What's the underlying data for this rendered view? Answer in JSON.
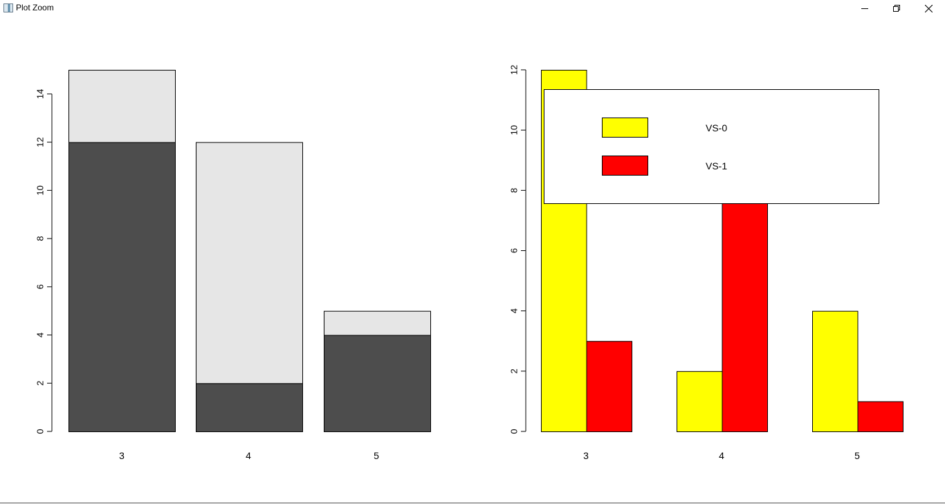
{
  "window": {
    "title": "Plot Zoom",
    "controls": [
      "minimize",
      "restore",
      "close"
    ]
  },
  "chart_data": [
    {
      "type": "bar",
      "stacked": true,
      "categories": [
        "3",
        "4",
        "5"
      ],
      "series": [
        {
          "values": [
            12,
            2,
            4
          ],
          "color": "#4d4d4d"
        },
        {
          "values": [
            3,
            10,
            1
          ],
          "color": "#e6e6e6"
        }
      ],
      "ylim": [
        0,
        15
      ],
      "yticks": [
        "0",
        "2",
        "4",
        "6",
        "8",
        "10",
        "12",
        "14"
      ],
      "title": "",
      "xlabel": "",
      "ylabel": "",
      "grid": false
    },
    {
      "type": "bar",
      "stacked": false,
      "categories": [
        "3",
        "4",
        "5"
      ],
      "series": [
        {
          "name": "VS-0",
          "values": [
            12,
            2,
            4
          ],
          "color": "#ffff00"
        },
        {
          "name": "VS-1",
          "values": [
            3,
            10,
            1
          ],
          "color": "#ff0000"
        }
      ],
      "ylim": [
        0,
        12
      ],
      "yticks": [
        "0",
        "2",
        "4",
        "6",
        "8",
        "10",
        "12"
      ],
      "legend": {
        "position": "top-right",
        "entries": [
          "VS-0",
          "VS-1"
        ]
      },
      "title": "",
      "xlabel": "",
      "ylabel": "",
      "grid": false
    }
  ]
}
